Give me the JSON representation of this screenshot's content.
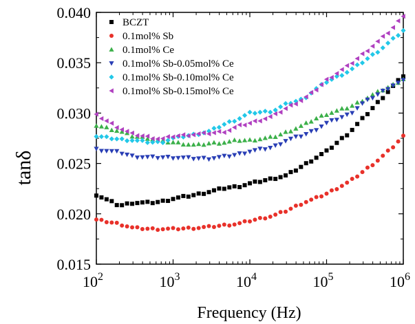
{
  "chart_data": {
    "type": "scatter",
    "xscale": "log",
    "xlim": [
      100,
      1000000
    ],
    "ylim": [
      0.015,
      0.04
    ],
    "x_ticks": [
      "10^2",
      "10^3",
      "10^4",
      "10^5",
      "10^6"
    ],
    "y_ticks": [
      "0.015",
      "0.020",
      "0.025",
      "0.030",
      "0.035",
      "0.040"
    ],
    "xlabel": "Frequency (Hz)",
    "ylabel": "tanδ",
    "legend_position": "top-left",
    "series": [
      {
        "name": "BCZT",
        "color": "#000000",
        "marker": "square",
        "points": [
          [
            100,
            0.0219
          ],
          [
            200,
            0.0208
          ],
          [
            300,
            0.0211
          ],
          [
            500,
            0.0211
          ],
          [
            700,
            0.0212
          ],
          [
            1000,
            0.0215
          ],
          [
            2000,
            0.0219
          ],
          [
            3000,
            0.0222
          ],
          [
            5000,
            0.0226
          ],
          [
            7000,
            0.0227
          ],
          [
            10000,
            0.023
          ],
          [
            20000,
            0.0235
          ],
          [
            30000,
            0.0238
          ],
          [
            50000,
            0.0248
          ],
          [
            70000,
            0.0255
          ],
          [
            100000,
            0.0262
          ],
          [
            200000,
            0.0281
          ],
          [
            300000,
            0.0295
          ],
          [
            500000,
            0.0313
          ],
          [
            700000,
            0.0325
          ],
          [
            1000000,
            0.0337
          ]
        ]
      },
      {
        "name": "0.1mol% Sb",
        "color": "#e8312a",
        "marker": "circle",
        "points": [
          [
            100,
            0.0194
          ],
          [
            200,
            0.019
          ],
          [
            300,
            0.0186
          ],
          [
            500,
            0.0185
          ],
          [
            700,
            0.0185
          ],
          [
            1000,
            0.0185
          ],
          [
            2000,
            0.0186
          ],
          [
            3000,
            0.0187
          ],
          [
            5000,
            0.0189
          ],
          [
            7000,
            0.019
          ],
          [
            10000,
            0.0193
          ],
          [
            20000,
            0.0198
          ],
          [
            30000,
            0.0203
          ],
          [
            50000,
            0.0211
          ],
          [
            70000,
            0.0215
          ],
          [
            100000,
            0.022
          ],
          [
            200000,
            0.0232
          ],
          [
            300000,
            0.0242
          ],
          [
            500000,
            0.0255
          ],
          [
            700000,
            0.0265
          ],
          [
            1000000,
            0.0277
          ]
        ]
      },
      {
        "name": "0.1mol% Ce",
        "color": "#3cb04a",
        "marker": "triangle-up",
        "points": [
          [
            100,
            0.0288
          ],
          [
            200,
            0.0282
          ],
          [
            300,
            0.0277
          ],
          [
            500,
            0.0275
          ],
          [
            700,
            0.0272
          ],
          [
            1000,
            0.0271
          ],
          [
            2000,
            0.0268
          ],
          [
            3000,
            0.027
          ],
          [
            5000,
            0.0271
          ],
          [
            7000,
            0.0273
          ],
          [
            10000,
            0.0273
          ],
          [
            20000,
            0.0276
          ],
          [
            30000,
            0.0281
          ],
          [
            50000,
            0.0288
          ],
          [
            70000,
            0.0294
          ],
          [
            100000,
            0.0299
          ],
          [
            200000,
            0.0306
          ],
          [
            300000,
            0.0313
          ],
          [
            500000,
            0.0322
          ],
          [
            700000,
            0.0327
          ],
          [
            1000000,
            0.0334
          ]
        ]
      },
      {
        "name": "0.1mol% Sb-0.05mol% Ce",
        "color": "#2a3fb5",
        "marker": "triangle-down",
        "points": [
          [
            100,
            0.0264
          ],
          [
            200,
            0.0261
          ],
          [
            300,
            0.0257
          ],
          [
            500,
            0.0256
          ],
          [
            700,
            0.0256
          ],
          [
            1000,
            0.0256
          ],
          [
            2000,
            0.0255
          ],
          [
            3000,
            0.0255
          ],
          [
            5000,
            0.0257
          ],
          [
            7000,
            0.0259
          ],
          [
            10000,
            0.0262
          ],
          [
            20000,
            0.0266
          ],
          [
            30000,
            0.0273
          ],
          [
            50000,
            0.0278
          ],
          [
            70000,
            0.0283
          ],
          [
            100000,
            0.029
          ],
          [
            200000,
            0.0299
          ],
          [
            300000,
            0.031
          ],
          [
            500000,
            0.032
          ],
          [
            700000,
            0.0327
          ],
          [
            1000000,
            0.0332
          ]
        ]
      },
      {
        "name": "0.1mol% Sb-0.10mol% Ce",
        "color": "#22c8e8",
        "marker": "diamond",
        "points": [
          [
            100,
            0.0277
          ],
          [
            200,
            0.0274
          ],
          [
            300,
            0.0273
          ],
          [
            500,
            0.0271
          ],
          [
            700,
            0.0271
          ],
          [
            1000,
            0.0275
          ],
          [
            2000,
            0.0279
          ],
          [
            3000,
            0.0282
          ],
          [
            5000,
            0.029
          ],
          [
            7000,
            0.0294
          ],
          [
            10000,
            0.03
          ],
          [
            20000,
            0.0302
          ],
          [
            30000,
            0.0309
          ],
          [
            50000,
            0.0314
          ],
          [
            70000,
            0.0323
          ],
          [
            100000,
            0.0331
          ],
          [
            200000,
            0.0342
          ],
          [
            300000,
            0.0351
          ],
          [
            500000,
            0.0363
          ],
          [
            700000,
            0.0372
          ],
          [
            1000000,
            0.0382
          ]
        ]
      },
      {
        "name": "0.1mol% Sb-0.15mol% Ce",
        "color": "#b040c0",
        "marker": "triangle-left",
        "points": [
          [
            100,
            0.0298
          ],
          [
            200,
            0.0285
          ],
          [
            300,
            0.0279
          ],
          [
            500,
            0.0276
          ],
          [
            700,
            0.0274
          ],
          [
            1000,
            0.0277
          ],
          [
            2000,
            0.0279
          ],
          [
            3000,
            0.028
          ],
          [
            5000,
            0.0282
          ],
          [
            7000,
            0.0287
          ],
          [
            10000,
            0.029
          ],
          [
            20000,
            0.0297
          ],
          [
            30000,
            0.0305
          ],
          [
            50000,
            0.0314
          ],
          [
            70000,
            0.0322
          ],
          [
            100000,
            0.0333
          ],
          [
            200000,
            0.0348
          ],
          [
            300000,
            0.0359
          ],
          [
            500000,
            0.0373
          ],
          [
            700000,
            0.0383
          ],
          [
            1000000,
            0.0397
          ]
        ]
      }
    ]
  }
}
